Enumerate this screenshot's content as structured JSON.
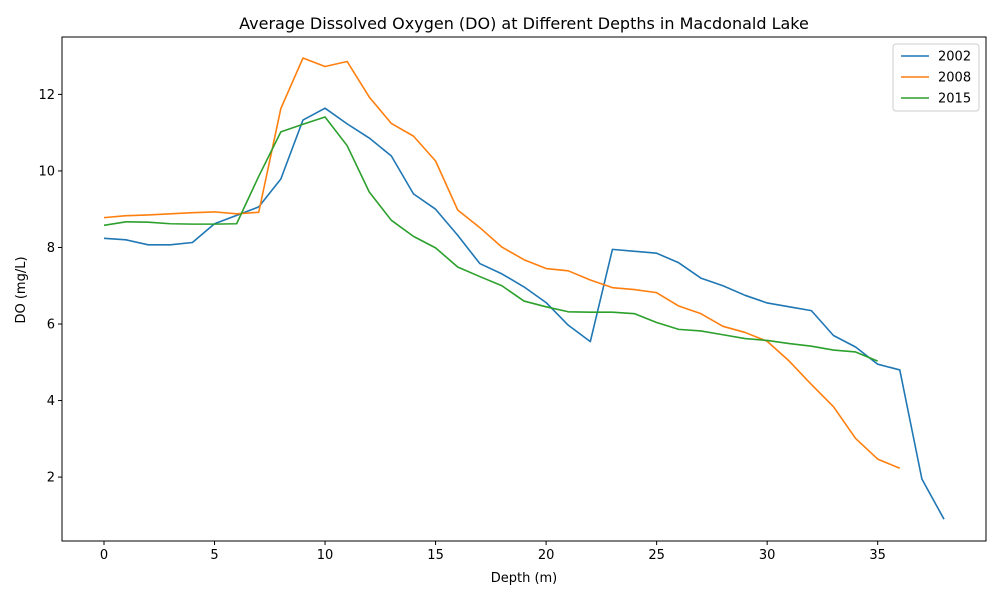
{
  "chart_data": {
    "type": "line",
    "title": "Average Dissolved Oxygen (DO) at Different Depths in Macdonald Lake",
    "xlabel": "Depth (m)",
    "ylabel": "DO (mg/L)",
    "xlim": [
      -1.9,
      39.9
    ],
    "ylim": [
      0.33,
      13.5
    ],
    "xticks": [
      0,
      5,
      10,
      15,
      20,
      25,
      30,
      35
    ],
    "yticks": [
      2,
      4,
      6,
      8,
      10,
      12
    ],
    "grid": false,
    "legend_position": "top-right",
    "series": [
      {
        "name": "2002",
        "color": "#1f77b4",
        "x": [
          0,
          1,
          2,
          3,
          4,
          5,
          6,
          7,
          8,
          9,
          10,
          11,
          12,
          13,
          14,
          15,
          16,
          17,
          18,
          19,
          20,
          21,
          22,
          23,
          24,
          25,
          26,
          27,
          28,
          29,
          30,
          31,
          32,
          33,
          34,
          35,
          36,
          37,
          38
        ],
        "y": [
          8.24,
          8.2,
          8.07,
          8.07,
          8.13,
          8.62,
          8.84,
          9.06,
          9.79,
          11.33,
          11.64,
          11.23,
          10.86,
          10.39,
          9.4,
          9.0,
          8.32,
          7.58,
          7.31,
          6.97,
          6.56,
          5.97,
          5.54,
          7.95,
          7.9,
          7.85,
          7.6,
          7.2,
          7.0,
          6.75,
          6.55,
          6.45,
          6.35,
          5.7,
          5.4,
          4.95,
          4.8,
          1.95,
          0.9
        ]
      },
      {
        "name": "2008",
        "color": "#ff7f0e",
        "x": [
          0,
          1,
          2,
          3,
          4,
          5,
          6,
          7,
          8,
          9,
          10,
          11,
          12,
          13,
          14,
          15,
          16,
          17,
          18,
          19,
          20,
          21,
          22,
          23,
          24,
          25,
          26,
          27,
          28,
          29,
          30,
          31,
          32,
          33,
          34,
          35,
          36
        ],
        "y": [
          8.78,
          8.83,
          8.85,
          8.88,
          8.91,
          8.93,
          8.88,
          8.92,
          11.63,
          12.95,
          12.73,
          12.86,
          11.93,
          11.24,
          10.91,
          10.26,
          8.98,
          8.52,
          8.01,
          7.68,
          7.45,
          7.39,
          7.15,
          6.95,
          6.9,
          6.82,
          6.47,
          6.27,
          5.94,
          5.78,
          5.55,
          5.03,
          4.42,
          3.84,
          3.01,
          2.47,
          2.23
        ]
      },
      {
        "name": "2015",
        "color": "#2ca02c",
        "x": [
          0,
          1,
          2,
          3,
          4,
          5,
          6,
          7,
          8,
          9,
          10,
          11,
          12,
          13,
          14,
          15,
          16,
          17,
          18,
          19,
          20,
          21,
          22,
          23,
          24,
          25,
          26,
          27,
          28,
          29,
          30,
          31,
          32,
          33,
          34,
          35
        ],
        "y": [
          8.58,
          8.67,
          8.66,
          8.62,
          8.61,
          8.61,
          8.62,
          9.86,
          11.02,
          11.22,
          11.41,
          10.66,
          9.45,
          8.71,
          8.29,
          7.99,
          7.49,
          7.24,
          7.0,
          6.6,
          6.45,
          6.32,
          6.31,
          6.31,
          6.27,
          6.04,
          5.86,
          5.82,
          5.72,
          5.62,
          5.57,
          5.49,
          5.42,
          5.32,
          5.27,
          5.03
        ]
      }
    ]
  }
}
